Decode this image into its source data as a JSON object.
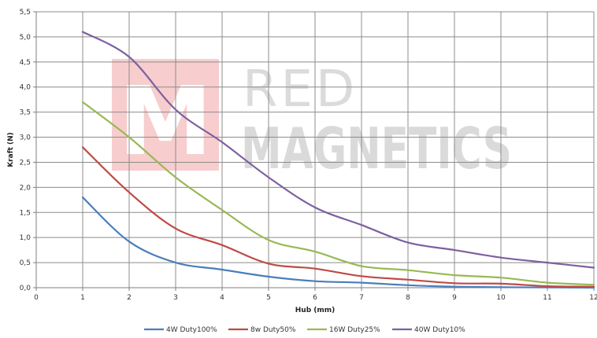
{
  "chart_data": {
    "type": "line",
    "xlabel": "Hub (mm)",
    "ylabel": "Kraft (N)",
    "xlim": [
      0,
      12
    ],
    "ylim": [
      0,
      5.5
    ],
    "x_ticks": [
      "0",
      "1",
      "2",
      "3",
      "4",
      "5",
      "6",
      "7",
      "8",
      "9",
      "10",
      "11",
      "12"
    ],
    "y_ticks": [
      "0,0",
      "0,5",
      "1,0",
      "1,5",
      "2,0",
      "2,5",
      "3,0",
      "3,5",
      "4,0",
      "4,5",
      "5,0",
      "5,5"
    ],
    "grid": true,
    "legend_position": "bottom",
    "x": [
      1,
      2,
      3,
      4,
      5,
      6,
      7,
      8,
      9,
      10,
      11,
      12
    ],
    "series": [
      {
        "name": "4W Duty100%",
        "color": "#4a7ebb",
        "values": [
          1.8,
          0.92,
          0.5,
          0.36,
          0.22,
          0.13,
          0.1,
          0.05,
          0.02,
          0.01,
          0.005,
          0.0
        ]
      },
      {
        "name": "8w Duty50%",
        "color": "#be4b48",
        "values": [
          2.8,
          1.9,
          1.18,
          0.85,
          0.48,
          0.38,
          0.23,
          0.16,
          0.09,
          0.08,
          0.03,
          0.02
        ]
      },
      {
        "name": "16W Duty25%",
        "color": "#98b954",
        "values": [
          3.7,
          3.0,
          2.2,
          1.55,
          0.95,
          0.72,
          0.43,
          0.35,
          0.25,
          0.2,
          0.1,
          0.06
        ]
      },
      {
        "name": "40W Duty10%",
        "color": "#7d60a0",
        "values": [
          5.1,
          4.6,
          3.55,
          2.9,
          2.2,
          1.6,
          1.25,
          0.9,
          0.75,
          0.6,
          0.5,
          0.4
        ]
      }
    ]
  },
  "watermark": {
    "logo_letter": "M",
    "line1": "RED",
    "line2": "MAGNETICS"
  }
}
